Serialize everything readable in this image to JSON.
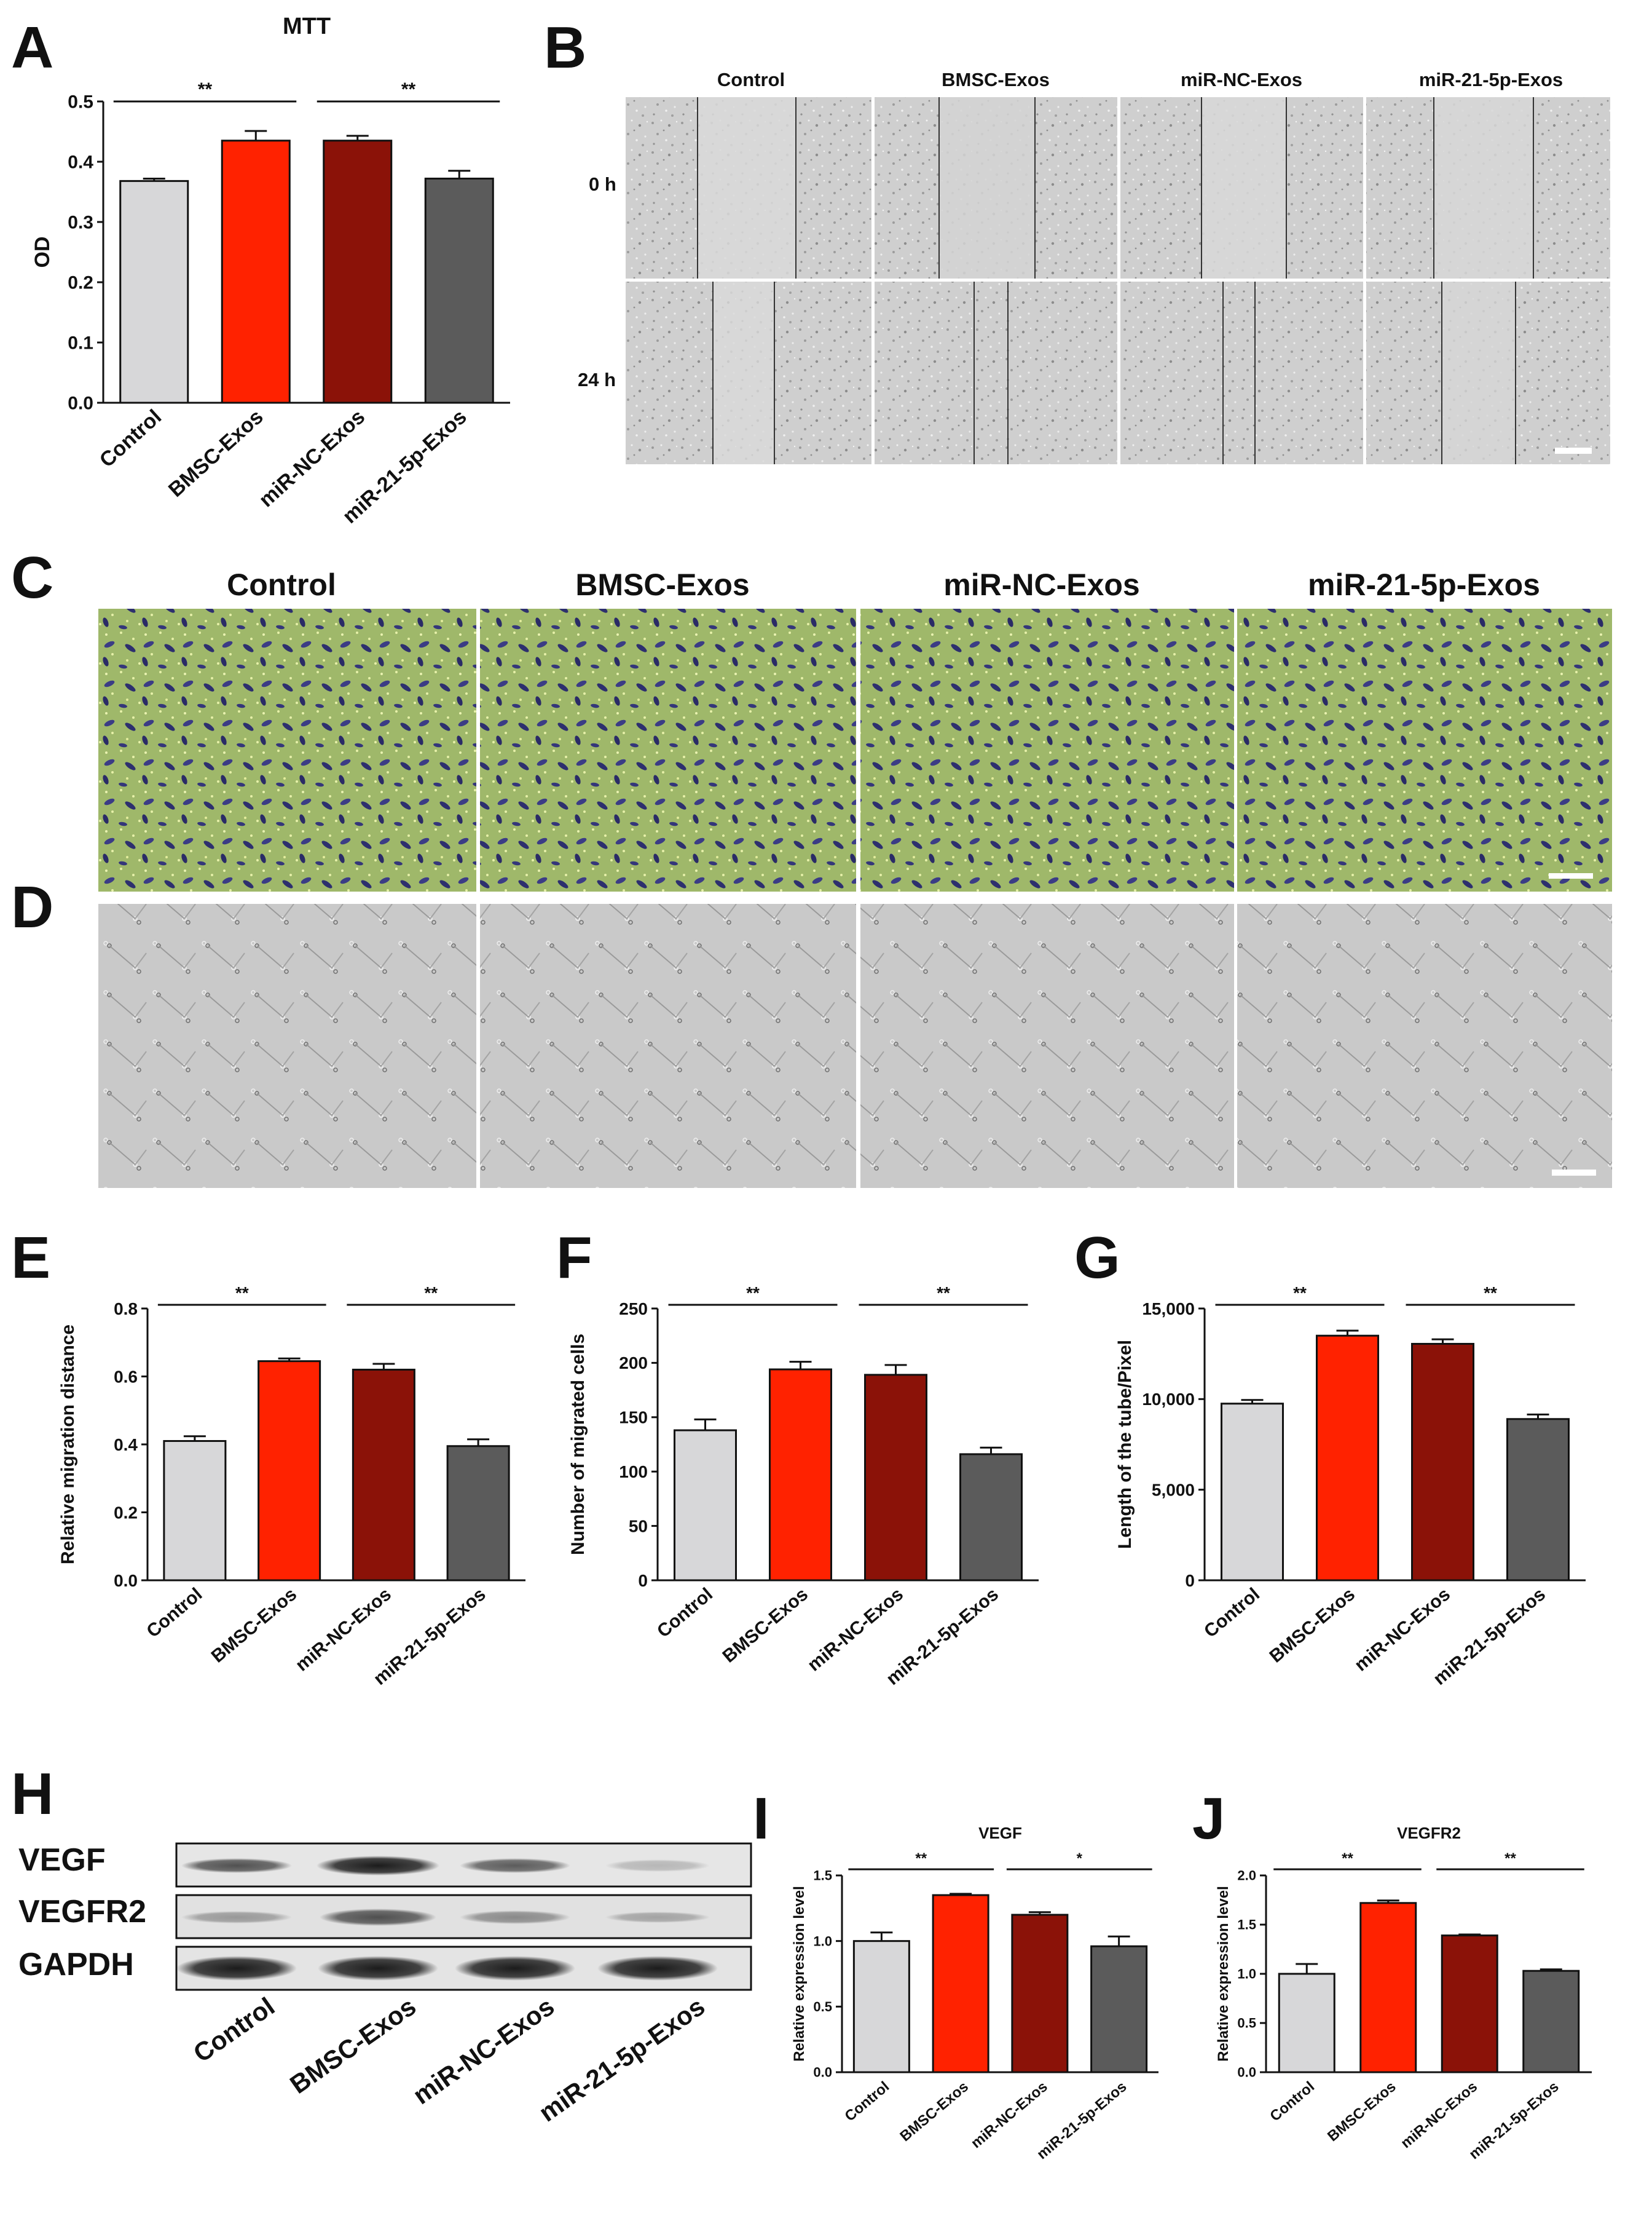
{
  "figure": {
    "panel_letters": [
      "A",
      "B",
      "C",
      "D",
      "E",
      "F",
      "G",
      "H",
      "I",
      "J"
    ],
    "groups": [
      "Control",
      "BMSC-Exos",
      "miR-NC-Exos",
      "miR-21-5p-Exos"
    ],
    "colors": [
      "#d7d7d9",
      "#ff2200",
      "#8b1208",
      "#5b5b5b"
    ],
    "panel_B": {
      "time_labels": [
        "0 h",
        "24 h"
      ]
    },
    "panel_H": {
      "band_labels": [
        "VEGF",
        "VEGFR2",
        "GAPDH"
      ]
    }
  },
  "chart_data": [
    {
      "panel": "A",
      "type": "bar",
      "title": "MTT",
      "xlabel": "",
      "ylabel": "OD",
      "categories": [
        "Control",
        "BMSC-Exos",
        "miR-NC-Exos",
        "miR-21-5p-Exos"
      ],
      "values": [
        0.368,
        0.435,
        0.435,
        0.372
      ],
      "errors": [
        0.004,
        0.016,
        0.008,
        0.013
      ],
      "ylim": [
        0,
        0.5
      ],
      "yticks": [
        "0.0",
        "0.1",
        "0.2",
        "0.3",
        "0.4",
        "0.5"
      ],
      "significance": [
        {
          "from": 0,
          "to": 1,
          "label": "**"
        },
        {
          "from": 2,
          "to": 3,
          "label": "**"
        }
      ]
    },
    {
      "panel": "E",
      "type": "bar",
      "title": "",
      "xlabel": "",
      "ylabel": "Relative migration distance",
      "categories": [
        "Control",
        "BMSC-Exos",
        "miR-NC-Exos",
        "miR-21-5p-Exos"
      ],
      "values": [
        0.41,
        0.645,
        0.62,
        0.395
      ],
      "errors": [
        0.014,
        0.008,
        0.017,
        0.02
      ],
      "ylim": [
        0,
        0.8
      ],
      "yticks": [
        "0.0",
        "0.2",
        "0.4",
        "0.6",
        "0.8"
      ],
      "significance": [
        {
          "from": 0,
          "to": 1,
          "label": "**"
        },
        {
          "from": 2,
          "to": 3,
          "label": "**"
        }
      ]
    },
    {
      "panel": "F",
      "type": "bar",
      "title": "",
      "xlabel": "",
      "ylabel": "Number of migrated cells",
      "categories": [
        "Control",
        "BMSC-Exos",
        "miR-NC-Exos",
        "miR-21-5p-Exos"
      ],
      "values": [
        138,
        194,
        189,
        116
      ],
      "errors": [
        10,
        7,
        9,
        6
      ],
      "ylim": [
        0,
        250
      ],
      "yticks": [
        "0",
        "50",
        "100",
        "150",
        "200",
        "250"
      ],
      "significance": [
        {
          "from": 0,
          "to": 1,
          "label": "**"
        },
        {
          "from": 2,
          "to": 3,
          "label": "**"
        }
      ]
    },
    {
      "panel": "G",
      "type": "bar",
      "title": "",
      "xlabel": "",
      "ylabel": "Length of the tube/Pixel",
      "categories": [
        "Control",
        "BMSC-Exos",
        "miR-NC-Exos",
        "miR-21-5p-Exos"
      ],
      "values": [
        9750,
        13500,
        13050,
        8900
      ],
      "errors": [
        200,
        280,
        250,
        250
      ],
      "ylim": [
        0,
        15000
      ],
      "yticks": [
        "0",
        "5,000",
        "10,000",
        "15,000"
      ],
      "significance": [
        {
          "from": 0,
          "to": 1,
          "label": "**"
        },
        {
          "from": 2,
          "to": 3,
          "label": "**"
        }
      ]
    },
    {
      "panel": "I",
      "type": "bar",
      "title": "VEGF",
      "xlabel": "",
      "ylabel": "Relative expression level",
      "categories": [
        "Control",
        "BMSC-Exos",
        "miR-NC-Exos",
        "miR-21-5p-Exos"
      ],
      "values": [
        1.0,
        1.35,
        1.2,
        0.96
      ],
      "errors": [
        0.065,
        0.01,
        0.02,
        0.075
      ],
      "ylim": [
        0,
        1.5
      ],
      "yticks": [
        "0.0",
        "0.5",
        "1.0",
        "1.5"
      ],
      "significance": [
        {
          "from": 0,
          "to": 1,
          "label": "**"
        },
        {
          "from": 2,
          "to": 3,
          "label": "*"
        }
      ]
    },
    {
      "panel": "J",
      "type": "bar",
      "title": "VEGFR2",
      "xlabel": "",
      "ylabel": "Relative expression level",
      "categories": [
        "Control",
        "BMSC-Exos",
        "miR-NC-Exos",
        "miR-21-5p-Exos"
      ],
      "values": [
        1.0,
        1.72,
        1.39,
        1.03
      ],
      "errors": [
        0.1,
        0.025,
        0.01,
        0.015
      ],
      "ylim": [
        0,
        2.0
      ],
      "yticks": [
        "0.0",
        "0.5",
        "1.0",
        "1.5",
        "2.0"
      ],
      "significance": [
        {
          "from": 0,
          "to": 1,
          "label": "**"
        },
        {
          "from": 2,
          "to": 3,
          "label": "**"
        }
      ]
    }
  ]
}
